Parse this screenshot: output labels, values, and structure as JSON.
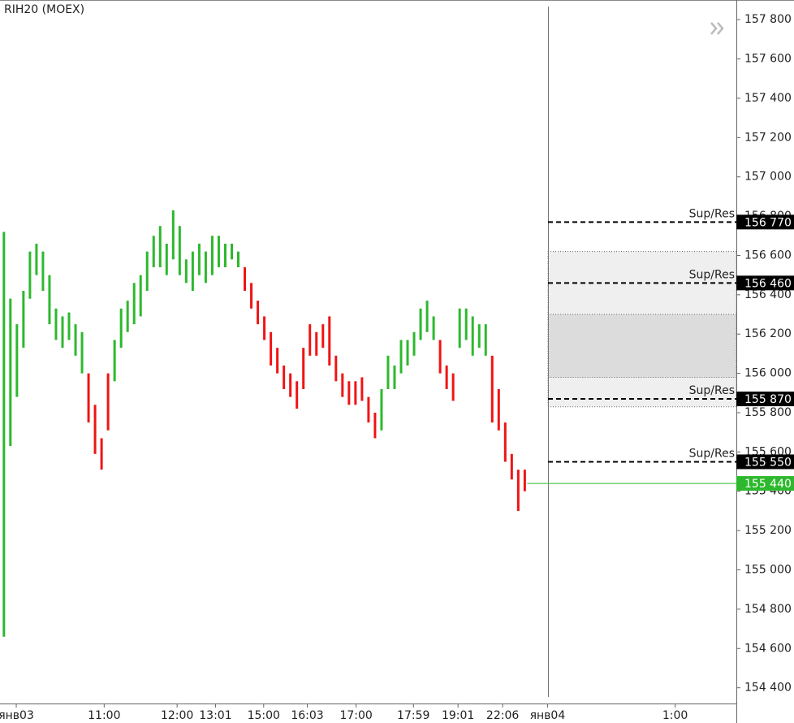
{
  "chart_data": {
    "type": "price_bars",
    "title": "RIH20 (MOEX)",
    "ylim": [
      154320,
      157900
    ],
    "yticks": [
      {
        "value": 154400,
        "label": "154 400"
      },
      {
        "value": 154600,
        "label": "154 600"
      },
      {
        "value": 154800,
        "label": "154 800"
      },
      {
        "value": 155000,
        "label": "155 000"
      },
      {
        "value": 155200,
        "label": "155 200"
      },
      {
        "value": 155400,
        "label": "155 400"
      },
      {
        "value": 155600,
        "label": "155 600"
      },
      {
        "value": 155800,
        "label": "155 800"
      },
      {
        "value": 156000,
        "label": "156 000"
      },
      {
        "value": 156200,
        "label": "156 200"
      },
      {
        "value": 156400,
        "label": "156 400"
      },
      {
        "value": 156600,
        "label": "156 600"
      },
      {
        "value": 156800,
        "label": "156 800"
      },
      {
        "value": 157000,
        "label": "157 000"
      },
      {
        "value": 157200,
        "label": "157 200"
      },
      {
        "value": 157400,
        "label": "157 400"
      },
      {
        "value": 157600,
        "label": "157 600"
      },
      {
        "value": 157800,
        "label": "157 800"
      }
    ],
    "xlim": [
      -0.6,
      112.5
    ],
    "xticks": [
      {
        "value": 1.9,
        "label": "янв03"
      },
      {
        "value": 15.4,
        "label": "11:00"
      },
      {
        "value": 26.6,
        "label": "12:00"
      },
      {
        "value": 32.5,
        "label": "13:01"
      },
      {
        "value": 39.9,
        "label": "15:00"
      },
      {
        "value": 46.6,
        "label": "16:03"
      },
      {
        "value": 54.1,
        "label": "17:00"
      },
      {
        "value": 62.9,
        "label": "17:59"
      },
      {
        "value": 69.75,
        "label": "19:01"
      },
      {
        "value": 76.6,
        "label": "22:06"
      },
      {
        "value": 83.5,
        "label": "янв04"
      },
      {
        "value": 103.1,
        "label": "1:00"
      }
    ],
    "high": [
      156720,
      156380,
      156250,
      156420,
      156620,
      156660,
      156620,
      156500,
      156330,
      156290,
      156310,
      156250,
      156210,
      156000,
      155840,
      155670,
      156000,
      156170,
      156330,
      156370,
      156460,
      156500,
      156620,
      156700,
      156750,
      156660,
      156830,
      156750,
      156580,
      156620,
      156660,
      156620,
      156700,
      156700,
      156660,
      156660,
      156620,
      156540,
      156460,
      156370,
      156290,
      156210,
      156130,
      156040,
      156000,
      155960,
      156130,
      156250,
      156210,
      156250,
      156290,
      156090,
      156000,
      155960,
      155960,
      155980,
      155880,
      155800,
      155920,
      156090,
      156040,
      156170,
      156170,
      156210,
      156330,
      156370,
      156290,
      156170,
      156040,
      156000,
      156330,
      156330,
      156290,
      156250,
      156250,
      156090,
      155920,
      155750,
      155590,
      155510,
      155510
    ],
    "low": [
      154660,
      155630,
      155880,
      156130,
      156380,
      156500,
      156420,
      156250,
      156170,
      156130,
      156170,
      156090,
      156000,
      155750,
      155590,
      155510,
      155710,
      155960,
      156130,
      156210,
      156250,
      156290,
      156420,
      156540,
      156540,
      156500,
      156580,
      156500,
      156460,
      156420,
      156500,
      156460,
      156500,
      156540,
      156540,
      156580,
      156540,
      156420,
      156330,
      156250,
      156170,
      156040,
      156000,
      155920,
      155880,
      155820,
      155920,
      156090,
      156090,
      156130,
      156040,
      155960,
      155880,
      155840,
      155840,
      155860,
      155750,
      155670,
      155710,
      155920,
      155920,
      156000,
      156040,
      156090,
      156170,
      156210,
      156170,
      156000,
      155920,
      155860,
      156130,
      156170,
      156090,
      156130,
      156090,
      155750,
      155710,
      155550,
      155460,
      155300,
      155400
    ],
    "colors": [
      "#2db82d",
      "#2db82d",
      "#2db82d",
      "#2db82d",
      "#2db82d",
      "#2db82d",
      "#2db82d",
      "#2db82d",
      "#2db82d",
      "#2db82d",
      "#2db82d",
      "#2db82d",
      "#2db82d",
      "#f01414",
      "#f01414",
      "#f01414",
      "#f01414",
      "#2db82d",
      "#2db82d",
      "#2db82d",
      "#2db82d",
      "#2db82d",
      "#2db82d",
      "#2db82d",
      "#2db82d",
      "#2db82d",
      "#2db82d",
      "#2db82d",
      "#2db82d",
      "#2db82d",
      "#2db82d",
      "#2db82d",
      "#2db82d",
      "#2db82d",
      "#2db82d",
      "#2db82d",
      "#2db82d",
      "#f01414",
      "#f01414",
      "#f01414",
      "#f01414",
      "#f01414",
      "#f01414",
      "#f01414",
      "#f01414",
      "#f01414",
      "#f01414",
      "#f01414",
      "#f01414",
      "#f01414",
      "#f01414",
      "#f01414",
      "#f01414",
      "#f01414",
      "#f01414",
      "#f01414",
      "#f01414",
      "#f01414",
      "#2db82d",
      "#2db82d",
      "#2db82d",
      "#2db82d",
      "#2db82d",
      "#2db82d",
      "#2db82d",
      "#2db82d",
      "#2db82d",
      "#f01414",
      "#f01414",
      "#f01414",
      "#2db82d",
      "#2db82d",
      "#2db82d",
      "#2db82d",
      "#2db82d",
      "#f01414",
      "#f01414",
      "#f01414",
      "#f01414",
      "#f01414",
      "#f01414"
    ],
    "zones": [
      {
        "top": 156620,
        "bottom": 155830,
        "color": "#efefef"
      },
      {
        "top": 156300,
        "bottom": 155980,
        "color": "#dcdcdc"
      }
    ],
    "levels": [
      {
        "label": "Sup/Res",
        "value": 156770,
        "value_label": "156 770"
      },
      {
        "label": "Sup/Res",
        "value": 156460,
        "value_label": "156 460"
      },
      {
        "label": "Sup/Res",
        "value": 155870,
        "value_label": "155 870"
      },
      {
        "label": "Sup/Res",
        "value": 155550,
        "value_label": "155 550"
      }
    ],
    "last_price": {
      "value": 155440,
      "value_label": "155 440",
      "color": "#2db82d"
    }
  }
}
